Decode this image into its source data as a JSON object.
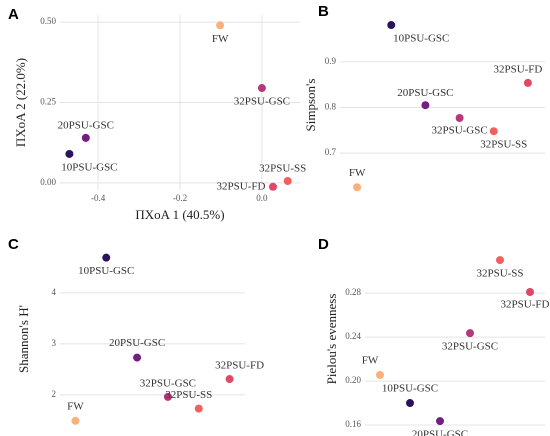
{
  "chart_data": [
    {
      "type": "scatter",
      "panel": "A",
      "xlabel": "ΠΧοΑ 1 (40.5%)",
      "ylabel": "ΠΧοΑ 2 (22.0%)",
      "categories": [
        "FW",
        "10PSU-GSC",
        "20PSU-GSC",
        "32PSU-GSC",
        "32PSU-SS",
        "32PSU-FD"
      ],
      "x": [
        -0.102,
        -0.47,
        -0.43,
        0.0,
        0.063,
        0.027
      ],
      "values": [
        0.49,
        0.09,
        0.14,
        0.295,
        0.006,
        -0.012
      ],
      "colors": [
        "#fdb07a",
        "#2c115f",
        "#721f81",
        "#b73779",
        "#f1605d",
        "#de4968"
      ],
      "xlim": [
        -0.493,
        0.093
      ],
      "xticks": [
        -0.4,
        -0.2,
        {
          "value": 0,
          "label": "0.0"
        }
      ],
      "ylim": [
        -0.022,
        0.522
      ],
      "yticks": [
        {
          "value": 0.5,
          "label": "0.50"
        },
        0.25,
        {
          "value": 0,
          "label": "0.00"
        }
      ],
      "grid": true
    },
    {
      "type": "scatter",
      "panel": "B",
      "ylabel": "Simpson's",
      "categories": [
        "FW",
        "10PSU-GSC",
        "20PSU-GSC",
        "32PSU-GSC",
        "32PSU-SS",
        "32PSU-FD"
      ],
      "values": [
        0.625,
        0.981,
        0.805,
        0.777,
        0.748,
        0.854
      ],
      "colors": [
        "#fdb07a",
        "#2c115f",
        "#721f81",
        "#b73779",
        "#f1605d",
        "#de4968"
      ],
      "ylim": [
        0.608,
        1.003
      ],
      "yticks": [
        0.7,
        0.8,
        0.9
      ],
      "grid": true
    },
    {
      "type": "scatter",
      "panel": "C",
      "ylabel": "Shannon's H'",
      "categories": [
        "FW",
        "10PSU-GSC",
        "20PSU-GSC",
        "32PSU-GSC",
        "32PSU-SS",
        "32PSU-FD"
      ],
      "values": [
        1.49,
        4.69,
        2.73,
        1.96,
        1.73,
        2.31
      ],
      "colors": [
        "#fdb07a",
        "#2c115f",
        "#721f81",
        "#b73779",
        "#f1605d",
        "#de4968"
      ],
      "ylim": [
        1.31,
        4.88
      ],
      "yticks": [
        2,
        3,
        4
      ],
      "grid": true
    },
    {
      "type": "scatter",
      "panel": "D",
      "ylabel": "Pielou's evenness",
      "categories": [
        "FW",
        "10PSU-GSC",
        "20PSU-GSC",
        "32PSU-GSC",
        "32PSU-SS",
        "32PSU-FD"
      ],
      "values": [
        0.2055,
        0.18,
        0.1636,
        0.2436,
        0.31,
        0.281
      ],
      "colors": [
        "#fdb07a",
        "#2c115f",
        "#721f81",
        "#b73779",
        "#f1605d",
        "#de4968"
      ],
      "ylim": [
        0.1555,
        0.321
      ],
      "yticks": [
        0.16,
        {
          "value": 0.2,
          "label": "0.20"
        },
        0.24,
        0.28
      ],
      "grid": true
    }
  ]
}
